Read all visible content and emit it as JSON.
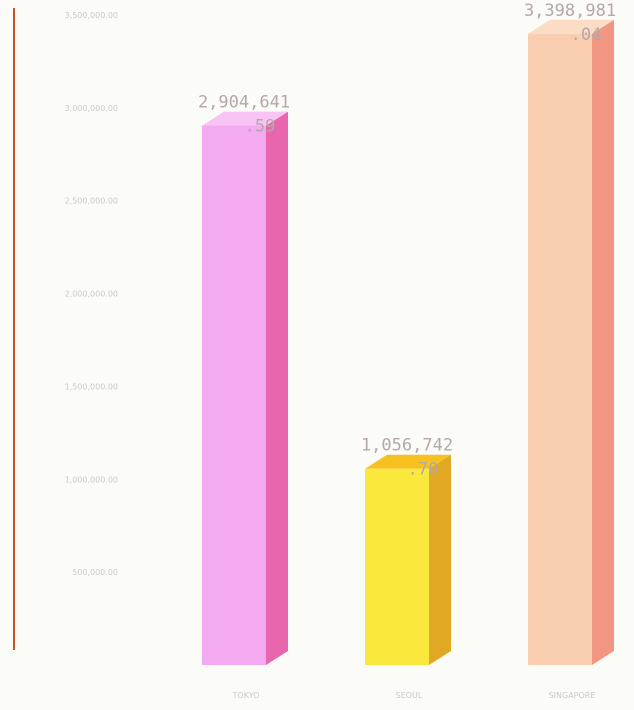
{
  "chart_data": {
    "type": "bar",
    "style": "3d",
    "categories": [
      "TOKYO",
      "SEOUL",
      "SINGAPORE"
    ],
    "values": [
      2904641.59,
      1056742.7,
      3398981.04
    ],
    "data_labels": [
      [
        "2,904,641",
        ".59"
      ],
      [
        "1,056,742",
        ".70"
      ],
      [
        "3,398,981",
        ".04"
      ]
    ],
    "y_ticks": [
      500000,
      1000000,
      1500000,
      2000000,
      2500000,
      3000000,
      3500000
    ],
    "y_tick_labels": [
      "500,000.00",
      "1,000,000.00",
      "1,500,000.00",
      "2,000,000.00",
      "2,500,000.00",
      "3,000,000.00",
      "3,500,000.00"
    ],
    "ylim": [
      0,
      3500000
    ],
    "title": "",
    "xlabel": "",
    "ylabel": "",
    "grid": false,
    "legend": "none",
    "colors": [
      {
        "front": "#f3aaf0",
        "side": "#e766ae",
        "top": "#f7c4f3"
      },
      {
        "front": "#fbe83c",
        "side": "#e0a823",
        "top": "#f7c21f"
      },
      {
        "front": "#f9cdb0",
        "side": "#f19683",
        "top": "#fbddc6"
      }
    ],
    "axis_color": "#c0552a"
  }
}
